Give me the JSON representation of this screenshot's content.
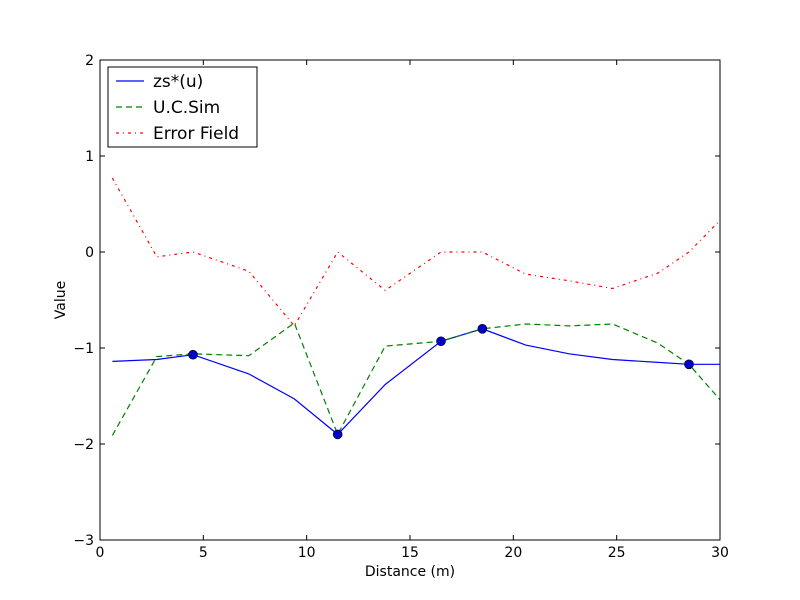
{
  "chart_data": {
    "type": "line",
    "title": "",
    "xlabel": "Distance (m)",
    "ylabel": "Value",
    "xlim": [
      0,
      30
    ],
    "ylim": [
      -3,
      2
    ],
    "xticks": [
      0,
      5,
      10,
      15,
      20,
      25,
      30
    ],
    "xtick_labels": [
      "0",
      "5",
      "10",
      "15",
      "20",
      "25",
      "30"
    ],
    "yticks": [
      -3,
      -2,
      -1,
      0,
      1,
      2
    ],
    "ytick_labels": [
      "−3",
      "−2",
      "−1",
      "0",
      "1",
      "2"
    ],
    "grid": false,
    "legend_position": "top-left",
    "series": [
      {
        "name": "zs*(u)",
        "color": "#0000ff",
        "style": "solid",
        "x": [
          0.6,
          2.75,
          4.5,
          7.2,
          9.4,
          11.5,
          13.8,
          16.5,
          18.5,
          20.6,
          22.7,
          24.8,
          27.0,
          28.5,
          30.0
        ],
        "y": [
          -1.14,
          -1.12,
          -1.07,
          -1.27,
          -1.53,
          -1.9,
          -1.38,
          -0.93,
          -0.8,
          -0.97,
          -1.06,
          -1.12,
          -1.15,
          -1.17,
          -1.17
        ]
      },
      {
        "name": "U.C.Sim",
        "color": "#008000",
        "style": "dashed",
        "x": [
          0.6,
          2.75,
          4.5,
          7.2,
          9.4,
          11.5,
          13.8,
          16.5,
          18.5,
          20.6,
          22.7,
          24.8,
          27.0,
          28.5,
          30.0
        ],
        "y": [
          -1.91,
          -1.09,
          -1.06,
          -1.08,
          -0.74,
          -1.9,
          -0.98,
          -0.93,
          -0.8,
          -0.75,
          -0.77,
          -0.75,
          -0.95,
          -1.17,
          -1.54
        ]
      },
      {
        "name": "Error Field",
        "color": "#ff0000",
        "style": "dashdot",
        "x": [
          0.6,
          2.75,
          4.5,
          7.2,
          9.4,
          11.5,
          13.8,
          16.5,
          18.5,
          20.6,
          22.7,
          24.8,
          27.0,
          28.5,
          30.0
        ],
        "y": [
          0.77,
          -0.05,
          0.0,
          -0.2,
          -0.77,
          0.0,
          -0.4,
          0.0,
          0.0,
          -0.23,
          -0.3,
          -0.38,
          -0.22,
          0.0,
          0.33
        ]
      }
    ],
    "markers": {
      "color": "#0000cc",
      "x": [
        4.5,
        11.5,
        16.5,
        18.5,
        28.5
      ],
      "y": [
        -1.07,
        -1.9,
        -0.93,
        -0.8,
        -1.17
      ]
    }
  }
}
